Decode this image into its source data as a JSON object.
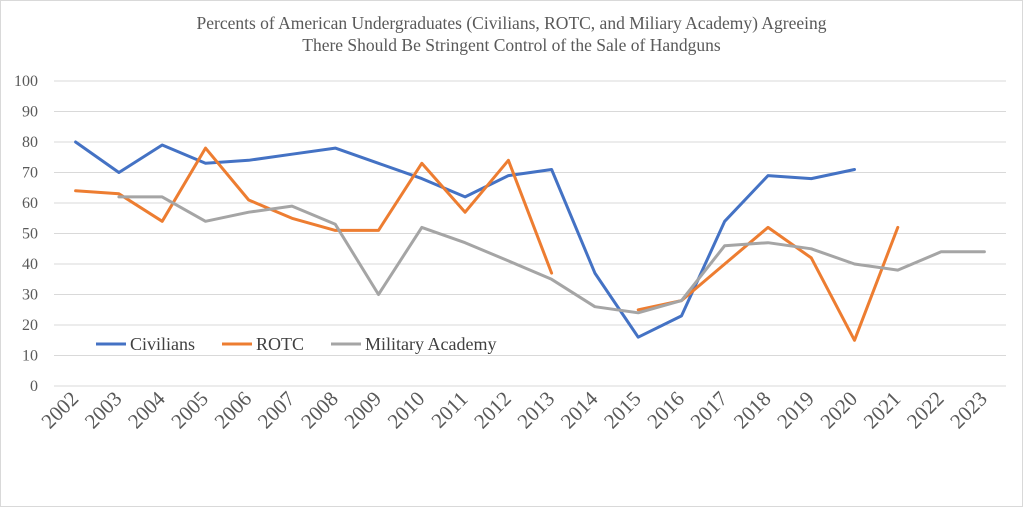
{
  "chart_data": {
    "type": "line",
    "title": "Percents of American Undergraduates (Civilians, ROTC, and Miliary Academy) Agreeing",
    "subtitle": "There Should Be Stringent Control of the Sale of Handguns",
    "xlabel": "",
    "ylabel": "",
    "ylim": [
      0,
      100
    ],
    "yticks": [
      "0",
      "10",
      "20",
      "30",
      "40",
      "50",
      "60",
      "70",
      "80",
      "90",
      "100"
    ],
    "categories": [
      "2002",
      "2003",
      "2004",
      "2005",
      "2006",
      "2007",
      "2008",
      "2009",
      "2010",
      "2011",
      "2012",
      "2013",
      "2014",
      "2015",
      "2016",
      "2017",
      "2018",
      "2019",
      "2020",
      "2021",
      "2022",
      "2023"
    ],
    "grid": true,
    "legend_position": "bottom-left (inside plot)",
    "series": [
      {
        "name": "Civilians",
        "color": "#4472c4",
        "values": [
          80,
          70,
          79,
          73,
          74,
          76,
          78,
          73,
          68,
          62,
          69,
          71,
          37,
          16,
          23,
          54,
          69,
          68,
          71,
          null,
          null,
          null
        ]
      },
      {
        "name": "ROTC",
        "color": "#ed7d31",
        "values": [
          64,
          63,
          54,
          78,
          61,
          55,
          51,
          51,
          73,
          57,
          74,
          37,
          null,
          25,
          28,
          40,
          52,
          42,
          15,
          52,
          null,
          null
        ]
      },
      {
        "name": "Military Academy",
        "color": "#a5a5a5",
        "values": [
          null,
          62,
          62,
          54,
          57,
          59,
          53,
          30,
          52,
          47,
          41,
          35,
          26,
          24,
          28,
          46,
          47,
          45,
          40,
          38,
          44,
          44
        ]
      }
    ]
  }
}
